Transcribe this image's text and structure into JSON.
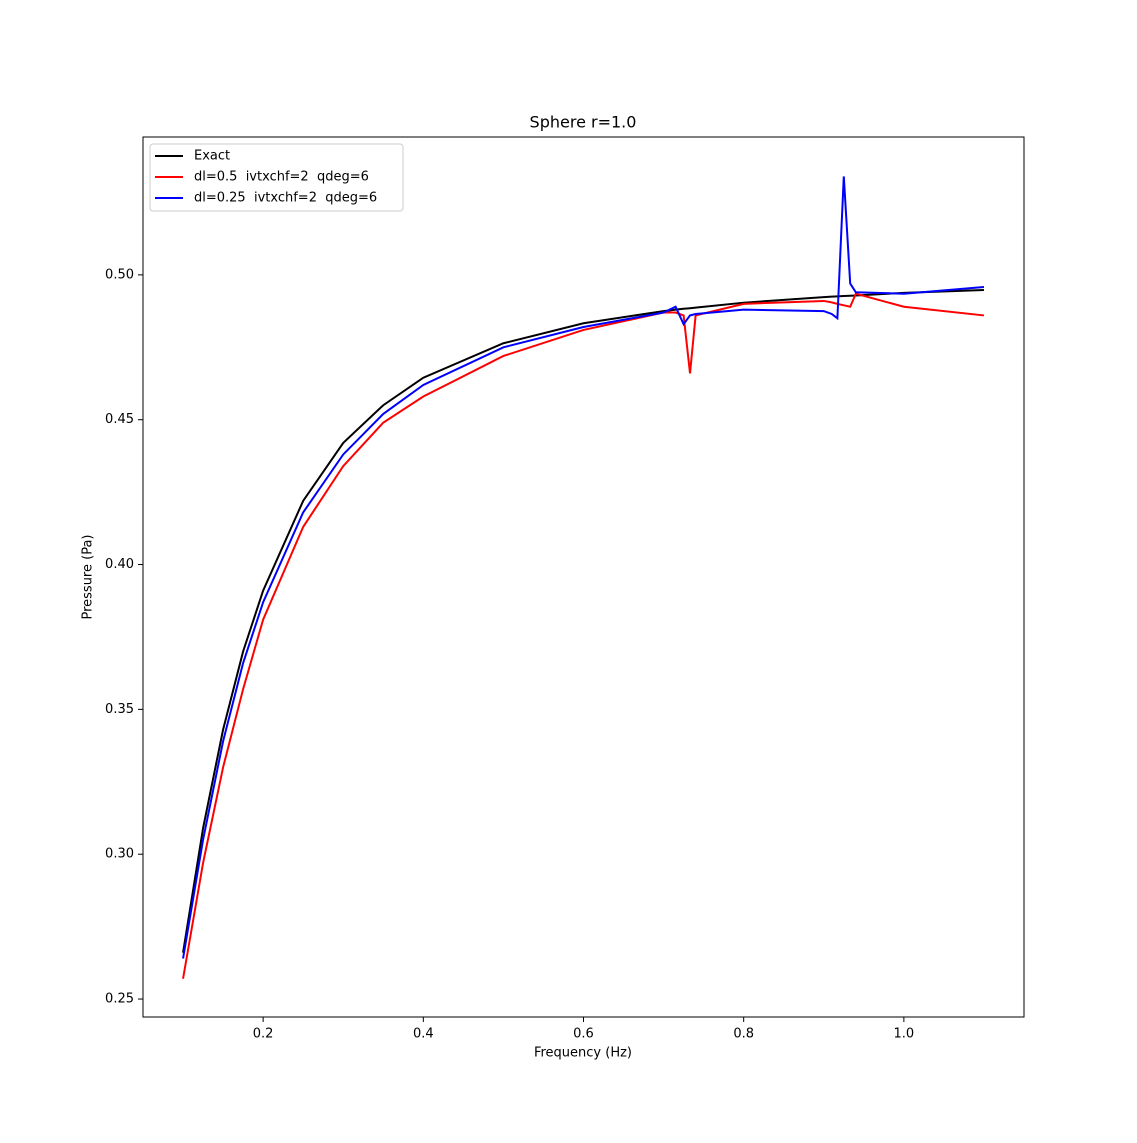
{
  "chart_data": {
    "type": "line",
    "title": "Sphere r=1.0",
    "x_label": "Frequency (Hz)",
    "y_label": "Pressure (Pa)",
    "x": [
      0.1,
      0.125,
      0.15,
      0.175,
      0.2,
      0.25,
      0.3,
      0.35,
      0.4,
      0.5,
      0.6,
      0.7,
      0.715,
      0.725,
      0.733,
      0.74,
      0.8,
      0.9,
      0.91,
      0.917,
      0.925,
      0.933,
      0.94,
      1.0,
      1.1
    ],
    "series": [
      {
        "name": "Exact",
        "color": "#000000",
        "values": [
          0.266,
          0.309,
          0.343,
          0.37,
          0.391,
          0.422,
          0.442,
          0.455,
          0.4645,
          0.4764,
          0.4833,
          0.4875,
          0.488,
          0.4883,
          0.4885,
          0.4887,
          0.4904,
          0.4923,
          0.4925,
          0.4926,
          0.4927,
          0.4928,
          0.4929,
          0.4938,
          0.4948
        ]
      },
      {
        "name": "dl=0.5  ivtxchf=2  qdeg=6",
        "color": "#ff0000",
        "values": [
          0.257,
          0.297,
          0.33,
          0.357,
          0.381,
          0.413,
          0.434,
          0.449,
          0.458,
          0.472,
          0.481,
          0.487,
          0.487,
          0.486,
          0.466,
          0.486,
          0.49,
          0.491,
          0.4905,
          0.49,
          0.4895,
          0.489,
          0.4935,
          0.489,
          0.486
        ]
      },
      {
        "name": "dl=0.25  ivtxchf=2  qdeg=6",
        "color": "#0000ff",
        "values": [
          0.264,
          0.305,
          0.339,
          0.366,
          0.387,
          0.418,
          0.438,
          0.452,
          0.462,
          0.475,
          0.482,
          0.487,
          0.489,
          0.483,
          0.486,
          0.4865,
          0.488,
          0.4875,
          0.4865,
          0.485,
          0.534,
          0.497,
          0.494,
          0.4935,
          0.4958
        ]
      }
    ],
    "xlim": [
      0.05,
      1.15
    ],
    "ylim": [
      0.2438,
      0.5476
    ],
    "xticks": [
      0.2,
      0.4,
      0.6,
      0.8,
      {
        "value": 1,
        "label": "1.0"
      }
    ],
    "yticks": [
      0.25,
      {
        "value": 0.3,
        "label": "0.30"
      },
      0.35,
      {
        "value": 0.4,
        "label": "0.40"
      },
      0.45,
      {
        "value": 0.5,
        "label": "0.50"
      }
    ],
    "legend": "upper left"
  }
}
